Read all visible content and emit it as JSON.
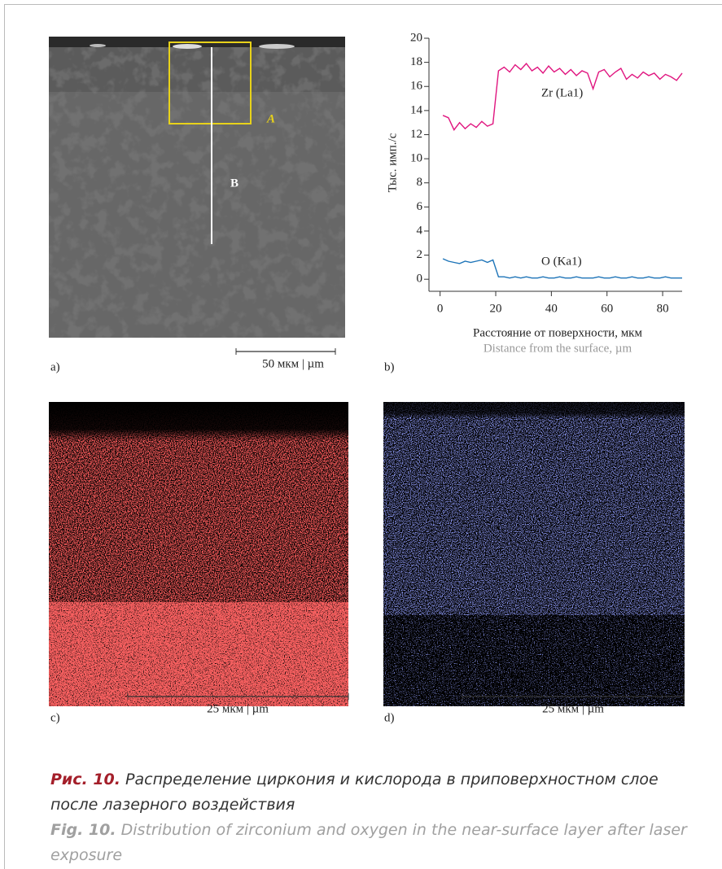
{
  "panels": {
    "a": {
      "label": "a)",
      "region_label": "A",
      "line_label": "B",
      "scale_bar": "50 мкм | µm"
    },
    "b": {
      "label": "b)"
    },
    "c": {
      "label": "c)",
      "scale_bar": "25 мкм | µm"
    },
    "d": {
      "label": "d)",
      "scale_bar": "25 мкм | µm"
    }
  },
  "chart_data": {
    "type": "line",
    "ylabel": "Тыс. имп./с",
    "xlabel": "Расстояние от поверхности, мкм",
    "xlabel_en": "Distance from the surface, µm",
    "x": [
      1,
      3,
      5,
      7,
      9,
      11,
      13,
      15,
      17,
      19,
      21,
      23,
      25,
      27,
      29,
      31,
      33,
      35,
      37,
      39,
      41,
      43,
      45,
      47,
      49,
      51,
      53,
      55,
      57,
      59,
      61,
      63,
      65,
      67,
      69,
      71,
      73,
      75,
      77,
      79,
      81,
      83,
      85,
      87
    ],
    "series": [
      {
        "name": "Zr (La1)",
        "color": "#e0157f",
        "values": [
          13.6,
          13.4,
          12.4,
          13.0,
          12.5,
          12.9,
          12.6,
          13.1,
          12.7,
          12.9,
          17.3,
          17.6,
          17.2,
          17.8,
          17.4,
          17.9,
          17.3,
          17.6,
          17.1,
          17.7,
          17.2,
          17.5,
          17.0,
          17.4,
          16.9,
          17.3,
          17.1,
          15.8,
          17.2,
          17.4,
          16.8,
          17.2,
          17.5,
          16.6,
          17.0,
          16.7,
          17.2,
          16.9,
          17.1,
          16.6,
          17.0,
          16.8,
          16.5,
          17.1
        ]
      },
      {
        "name": "O (Ka1)",
        "color": "#1d74b8",
        "values": [
          1.7,
          1.5,
          1.4,
          1.3,
          1.5,
          1.4,
          1.5,
          1.6,
          1.4,
          1.6,
          0.2,
          0.2,
          0.1,
          0.2,
          0.1,
          0.2,
          0.1,
          0.1,
          0.2,
          0.1,
          0.1,
          0.2,
          0.1,
          0.1,
          0.2,
          0.1,
          0.1,
          0.1,
          0.2,
          0.1,
          0.1,
          0.2,
          0.1,
          0.1,
          0.2,
          0.1,
          0.1,
          0.2,
          0.1,
          0.1,
          0.2,
          0.1,
          0.1,
          0.1
        ]
      }
    ],
    "xlim": [
      -4,
      87
    ],
    "ylim": [
      -1,
      20
    ],
    "xticks": [
      0,
      20,
      40,
      60,
      80
    ],
    "yticks": [
      0,
      2,
      4,
      6,
      8,
      10,
      12,
      14,
      16,
      18,
      20
    ]
  },
  "caption": {
    "ru_label": "Рис. 10.",
    "ru_text": "Распределение циркония и кислорода в приповерхностном слое после лазерного воздействия",
    "en_label": "Fig. 10.",
    "en_text": "Distribution of zirconium and oxygen in the near-surface layer after laser exposure"
  }
}
